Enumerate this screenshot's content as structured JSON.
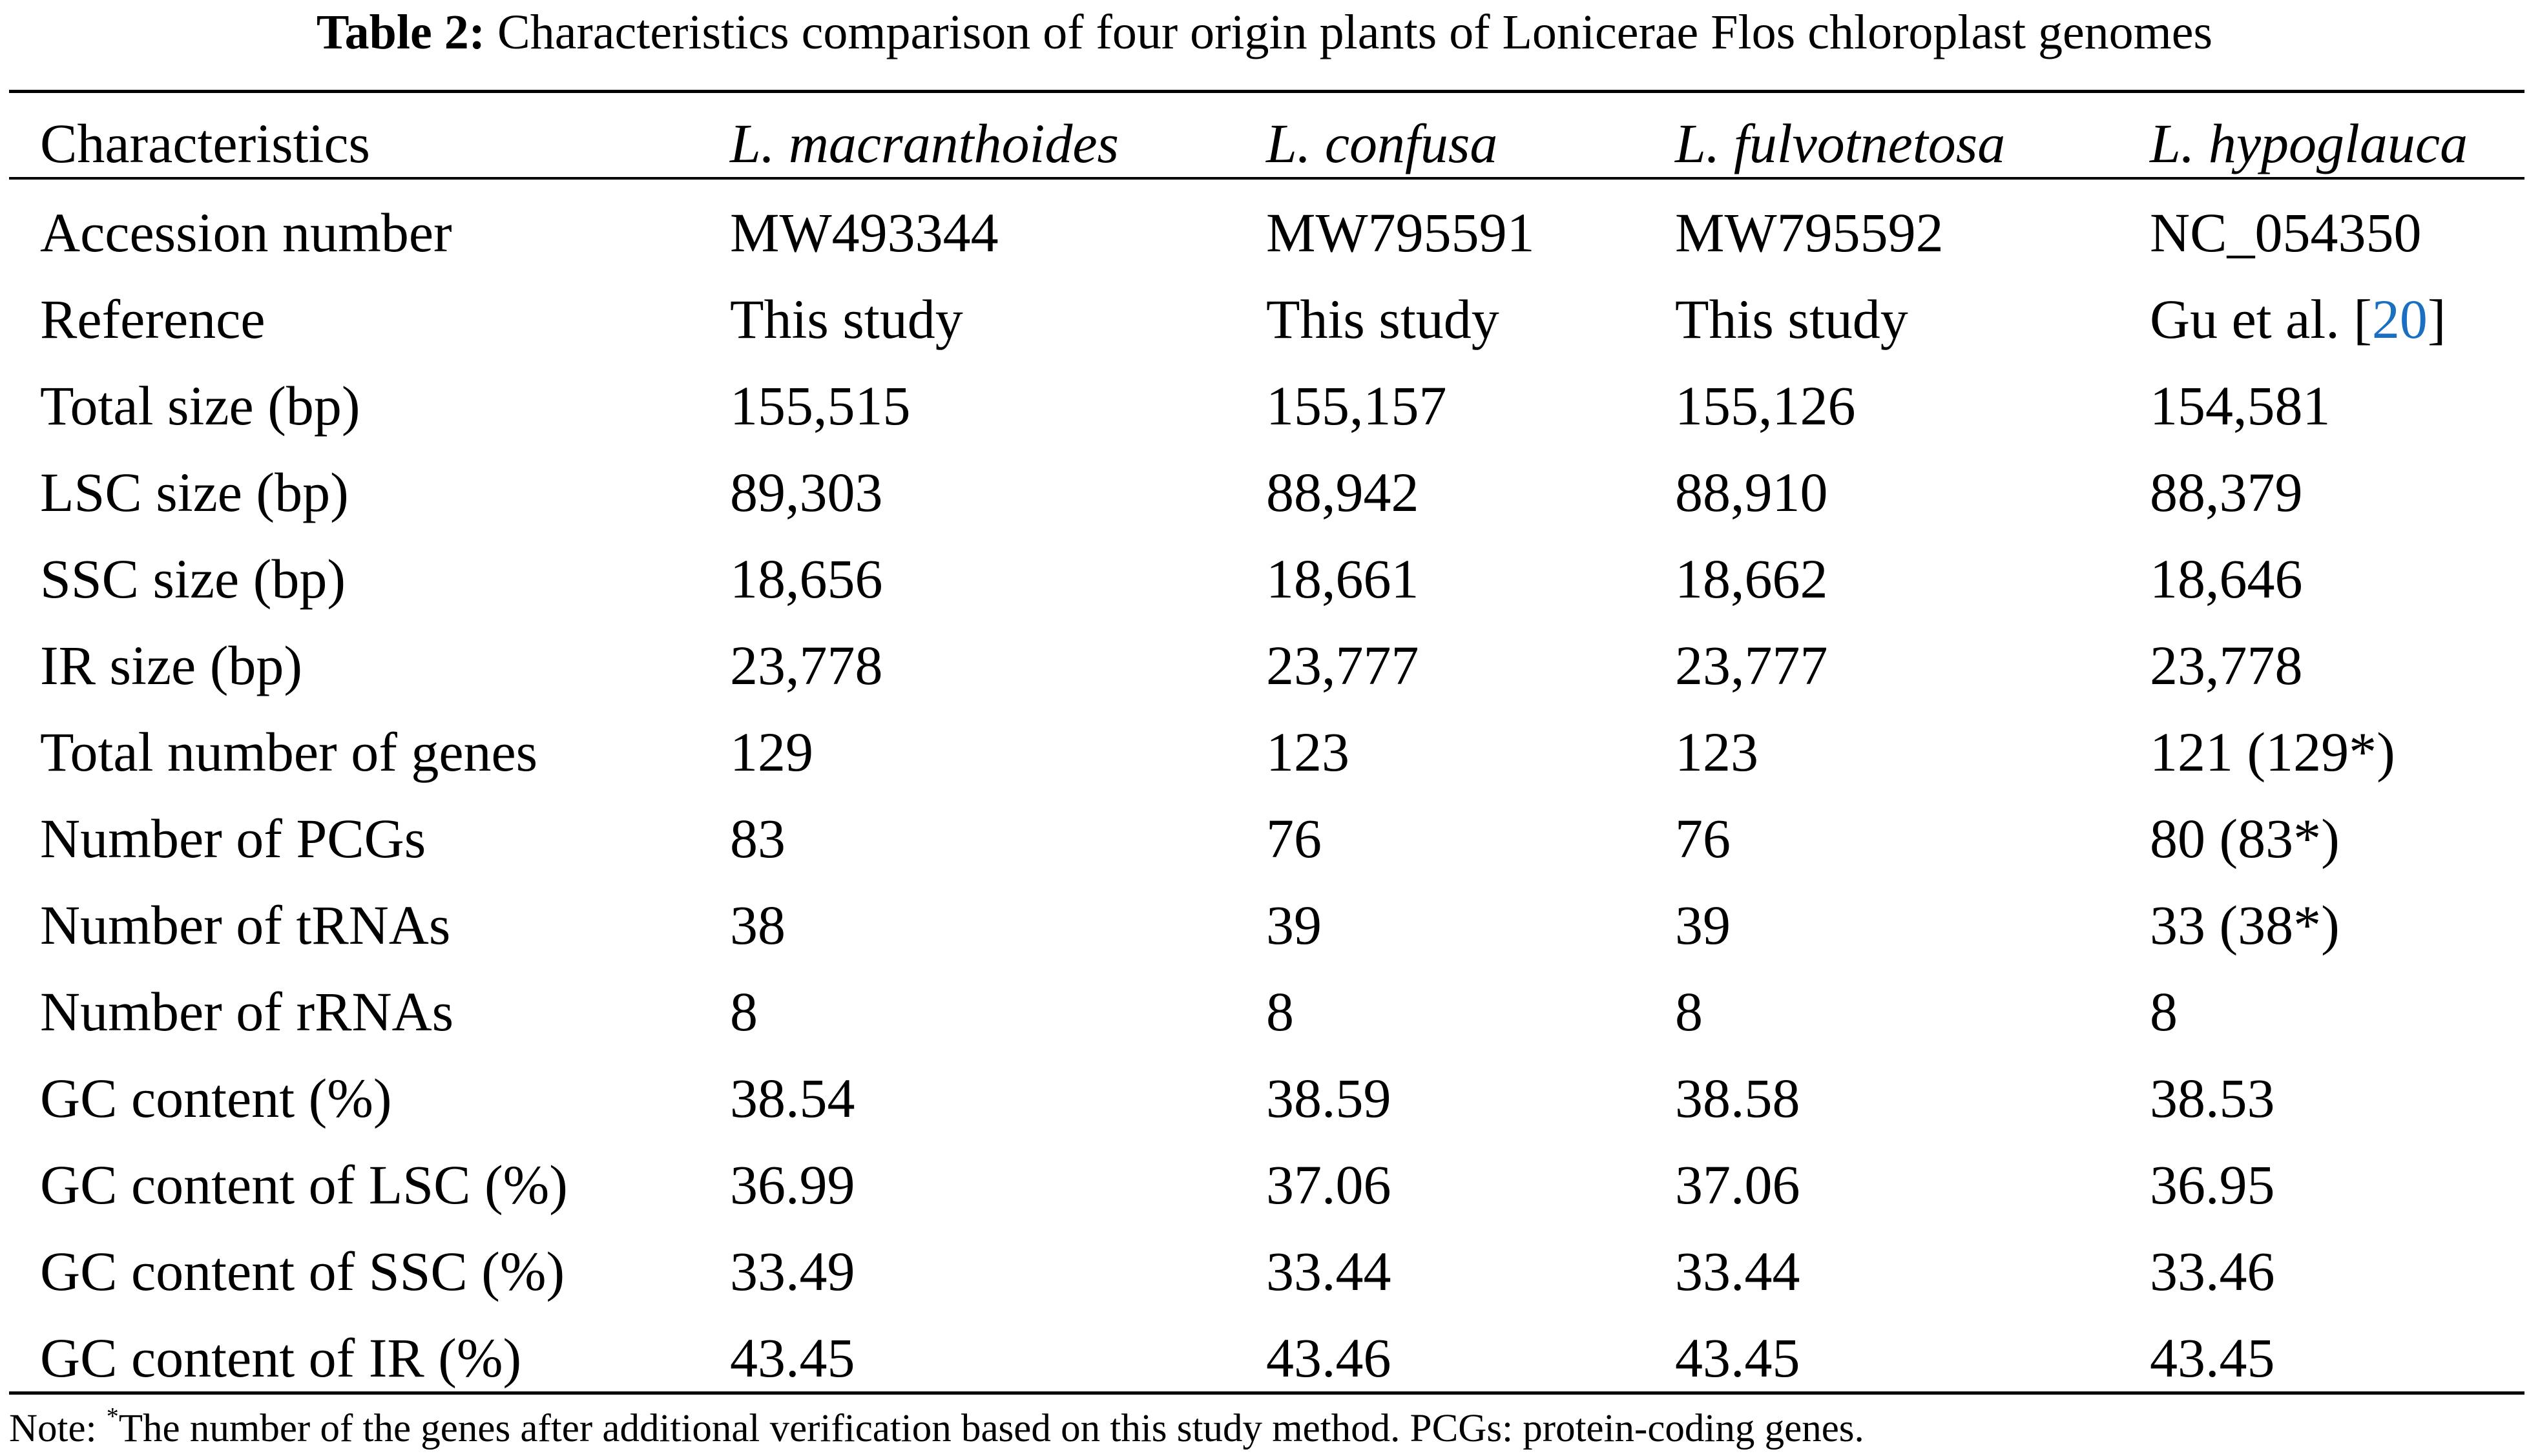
{
  "caption": {
    "label": "Table 2:",
    "text": "Characteristics comparison of four origin plants of Lonicerae Flos chloroplast genomes"
  },
  "header": [
    "Characteristics",
    "L. macranthoides",
    "L. confusa",
    "L. fulvotnetosa",
    "L. hypoglauca"
  ],
  "reference_row": {
    "label": "Reference",
    "values": [
      "This study",
      "This study",
      "This study"
    ],
    "last_prefix": "Gu et al. [",
    "last_link": "20",
    "last_suffix": "]"
  },
  "rows": [
    {
      "label": "Accession number",
      "values": [
        "MW493344",
        "MW795591",
        "MW795592",
        "NC_054350"
      ]
    },
    {
      "label": "Total size (bp)",
      "values": [
        "155,515",
        "155,157",
        "155,126",
        "154,581"
      ]
    },
    {
      "label": "LSC size (bp)",
      "values": [
        "89,303",
        "88,942",
        "88,910",
        "88,379"
      ]
    },
    {
      "label": "SSC size (bp)",
      "values": [
        "18,656",
        "18,661",
        "18,662",
        "18,646"
      ]
    },
    {
      "label": "IR size (bp)",
      "values": [
        "23,778",
        "23,777",
        "23,777",
        "23,778"
      ]
    },
    {
      "label": "Total number of genes",
      "values": [
        "129",
        "123",
        "123",
        "121 (129*)"
      ]
    },
    {
      "label": "Number of PCGs",
      "values": [
        "83",
        "76",
        "76",
        "80 (83*)"
      ]
    },
    {
      "label": "Number of tRNAs",
      "values": [
        "38",
        "39",
        "39",
        "33 (38*)"
      ]
    },
    {
      "label": "Number of rRNAs",
      "values": [
        "8",
        "8",
        "8",
        "8"
      ]
    },
    {
      "label": "GC content (%)",
      "values": [
        "38.54",
        "38.59",
        "38.58",
        "38.53"
      ]
    },
    {
      "label": "GC content of LSC (%)",
      "values": [
        "36.99",
        "37.06",
        "37.06",
        "36.95"
      ]
    },
    {
      "label": "GC content of SSC (%)",
      "values": [
        "33.49",
        "33.44",
        "33.44",
        "33.46"
      ]
    },
    {
      "label": "GC content of IR (%)",
      "values": [
        "43.45",
        "43.46",
        "43.45",
        "43.45"
      ]
    }
  ],
  "note": {
    "prefix": "Note: ",
    "marker": "*",
    "text": "The number of the genes after additional verification based on this study method. PCGs: protein-coding genes."
  },
  "colors": {
    "link": "#1a6fc0"
  }
}
